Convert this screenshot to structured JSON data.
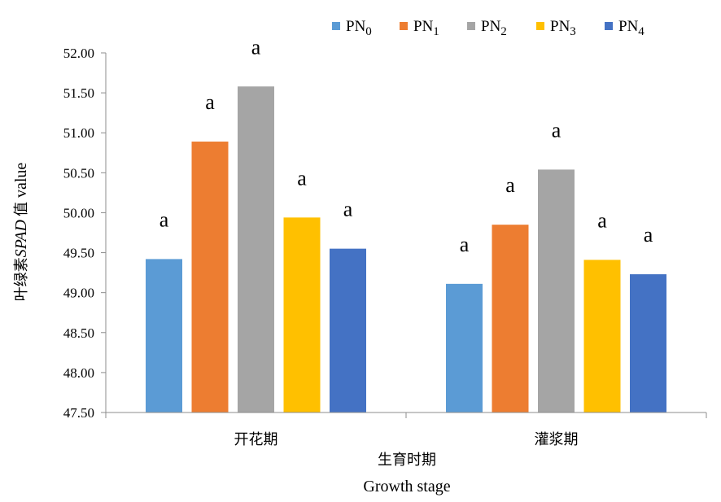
{
  "chart_data": {
    "type": "bar",
    "categories": [
      "开花期",
      "灌浆期"
    ],
    "series": [
      {
        "name": "PN",
        "sub": "0",
        "values": [
          49.42,
          49.11
        ],
        "color": "#5B9BD5"
      },
      {
        "name": "PN",
        "sub": "1",
        "values": [
          50.89,
          49.85
        ],
        "color": "#ED7D31"
      },
      {
        "name": "PN",
        "sub": "2",
        "values": [
          51.58,
          50.54
        ],
        "color": "#A5A5A5"
      },
      {
        "name": "PN",
        "sub": "3",
        "values": [
          49.94,
          49.41
        ],
        "color": "#FFC000"
      },
      {
        "name": "PN",
        "sub": "4",
        "values": [
          49.55,
          49.23
        ],
        "color": "#4472C4"
      }
    ],
    "labels": [
      [
        "a",
        "a",
        "a",
        "a",
        "a"
      ],
      [
        "a",
        "a",
        "a",
        "a",
        "a"
      ]
    ],
    "ylim": [
      47.5,
      52.0
    ],
    "yticks": [
      "47.50",
      "48.00",
      "48.50",
      "49.00",
      "49.50",
      "50.00",
      "50.50",
      "51.00",
      "51.50",
      "52.00"
    ],
    "xlabel": "生育时期",
    "xlabel_en": "Growth stage",
    "ylabel_cn1": "叶绿素",
    "ylabel_it": "SPAD",
    "ylabel_cn2": "值",
    "ylabel_en": "value",
    "legend_position": "top-right",
    "grid": false
  }
}
